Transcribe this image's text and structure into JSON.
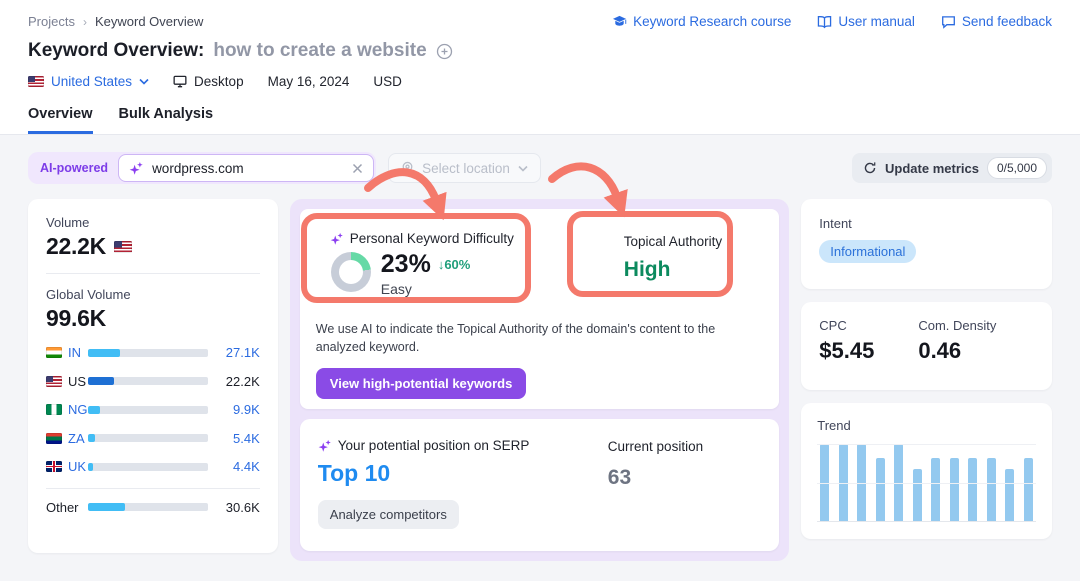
{
  "colors": {
    "accent_blue": "#2b6be0",
    "top10_blue": "#1f8bf0",
    "purple": "#7d3ce8",
    "purple_button": "#8a4be6",
    "annotation_salmon": "#f4796b",
    "donut_green": "#66d9a6",
    "donut_gray": "#c7cdd8",
    "delta_green": "#1f9e7a",
    "high_green": "#0c8a5e",
    "bar_light_blue": "#41bdf5",
    "bar_dark_blue": "#1e70d4",
    "trend_bar_blue": "#93c9ef",
    "intent_badge_bg": "#cbe6fb"
  },
  "header": {
    "breadcrumb": {
      "items": [
        "Projects",
        "Keyword Overview"
      ]
    },
    "links": [
      {
        "label": "Keyword Research course",
        "icon": "graduation-cap-icon"
      },
      {
        "label": "User manual",
        "icon": "book-icon"
      },
      {
        "label": "Send feedback",
        "icon": "chat-icon"
      }
    ],
    "title_prefix": "Keyword Overview:",
    "title_keyword": "how to create a website",
    "filters": {
      "country": "United States",
      "device": "Desktop",
      "date": "May 16, 2024",
      "currency": "USD"
    },
    "tabs": [
      {
        "label": "Overview",
        "active": true
      },
      {
        "label": "Bulk Analysis",
        "active": false
      }
    ]
  },
  "toolbar": {
    "ai_badge": "AI-powered",
    "domain_input": {
      "value": "wordpress.com"
    },
    "location_select": {
      "placeholder": "Select location"
    },
    "update_button": {
      "label": "Update metrics",
      "quota": "0/5,000"
    }
  },
  "volume_panel": {
    "volume_label": "Volume",
    "volume_value": "22.2K",
    "global_label": "Global Volume",
    "global_value": "99.6K",
    "countries": [
      {
        "code": "IN",
        "flag": "in",
        "value": "27.1K",
        "share": 0.27,
        "link": true,
        "bar": "light"
      },
      {
        "code": "US",
        "flag": "us",
        "value": "22.2K",
        "share": 0.22,
        "link": false,
        "bar": "dark"
      },
      {
        "code": "NG",
        "flag": "ng",
        "value": "9.9K",
        "share": 0.1,
        "link": true,
        "bar": "light"
      },
      {
        "code": "ZA",
        "flag": "za",
        "value": "5.4K",
        "share": 0.055,
        "link": true,
        "bar": "light"
      },
      {
        "code": "UK",
        "flag": "uk",
        "value": "4.4K",
        "share": 0.045,
        "link": true,
        "bar": "light"
      },
      {
        "code": "Other",
        "flag": null,
        "value": "30.6K",
        "share": 0.31,
        "link": false,
        "bar": "light",
        "divider_above": true
      }
    ]
  },
  "difficulty_panel": {
    "pkd_label": "Personal Keyword Difficulty",
    "pkd_value": "23%",
    "pkd_percent": 23,
    "pkd_delta": "↓60%",
    "pkd_level": "Easy",
    "topical_label": "Topical Authority",
    "topical_value": "High",
    "description": "We use AI to indicate the Topical Authority of the domain's content to the analyzed keyword.",
    "cta_label": "View high-potential keywords"
  },
  "serp_panel": {
    "potential_label": "Your potential position on SERP",
    "potential_value": "Top 10",
    "current_label": "Current position",
    "current_value": "63",
    "cta_label": "Analyze competitors"
  },
  "intent_panel": {
    "label": "Intent",
    "badge": "Informational"
  },
  "cpc_panel": {
    "cpc_label": "CPC",
    "cpc_value": "$5.45",
    "density_label": "Com. Density",
    "density_value": "0.46"
  },
  "trend_panel": {
    "label": "Trend"
  },
  "chart_data": [
    {
      "type": "bar",
      "title": "Trend",
      "values": [
        1,
        1,
        1,
        0.82,
        1,
        0.67,
        0.82,
        0.82,
        0.82,
        0.82,
        0.67,
        0.82
      ],
      "ylim": [
        0,
        1
      ],
      "grid": true,
      "legend": "none",
      "note": "12 bars of relative monthly search volume, light blue"
    },
    {
      "type": "bar",
      "title": "Global Volume by country",
      "categories": [
        "IN",
        "US",
        "NG",
        "ZA",
        "UK",
        "Other"
      ],
      "values": [
        27100,
        22200,
        9900,
        5400,
        4400,
        30600
      ]
    }
  ]
}
